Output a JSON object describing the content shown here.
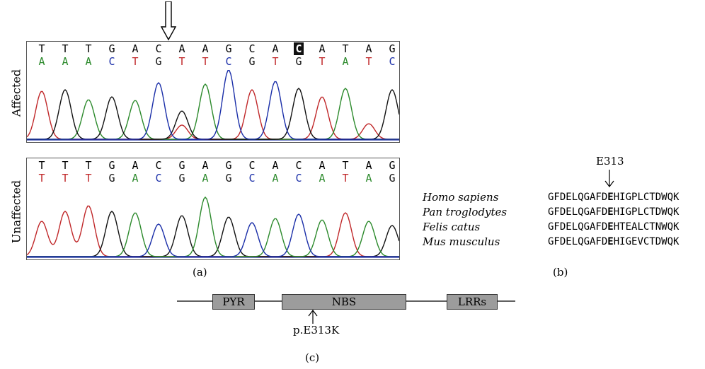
{
  "panel_a": {
    "caption": "(a)",
    "affected": {
      "label": "Affected",
      "seq_top": [
        "T",
        "T",
        "T",
        "G",
        "A",
        "C",
        "A",
        "A",
        "G",
        "C",
        "A",
        "C",
        "A",
        "T",
        "A",
        "G"
      ],
      "highlight_index": 11,
      "seq_bottom": [
        "A",
        "A",
        "A",
        "C",
        "T",
        "G",
        "T",
        "T",
        "C",
        "G",
        "T",
        "G",
        "T",
        "A",
        "T",
        "C"
      ],
      "bottom_colors": [
        "#2c8a2c",
        "#2c8a2c",
        "#2c8a2c",
        "#1a2ea8",
        "#c0282a",
        "#111111",
        "#c0282a",
        "#c0282a",
        "#1a2ea8",
        "#111111",
        "#c0282a",
        "#111111",
        "#c0282a",
        "#2c8a2c",
        "#c0282a",
        "#1a2ea8"
      ]
    },
    "unaffected": {
      "label": "Unaffected",
      "seq_top": [
        "T",
        "T",
        "T",
        "G",
        "A",
        "C",
        "G",
        "A",
        "G",
        "C",
        "A",
        "C",
        "A",
        "T",
        "A",
        "G"
      ],
      "seq_bottom": [
        "T",
        "T",
        "T",
        "G",
        "A",
        "C",
        "G",
        "A",
        "G",
        "C",
        "A",
        "C",
        "A",
        "T",
        "A",
        "G"
      ],
      "bottom_colors": [
        "#c0282a",
        "#c0282a",
        "#c0282a",
        "#111111",
        "#2c8a2c",
        "#1a2ea8",
        "#111111",
        "#2c8a2c",
        "#111111",
        "#1a2ea8",
        "#2c8a2c",
        "#1a2ea8",
        "#2c8a2c",
        "#c0282a",
        "#2c8a2c",
        "#111111"
      ]
    }
  },
  "panel_b": {
    "caption": "(b)",
    "marker_label": "E313",
    "rows": [
      {
        "species": "Homo sapiens",
        "pre": "GFDELQGAFD",
        "mark": "E",
        "post": "HIGPLCTDWQK"
      },
      {
        "species": "Pan troglodytes",
        "pre": "GFDELQGAFD",
        "mark": "E",
        "post": "HIGPLCTDWQK"
      },
      {
        "species": "Felis catus",
        "pre": "GFDELQGAFD",
        "mark": "E",
        "post": "HTEALCTNWQK"
      },
      {
        "species": "Mus musculus",
        "pre": "GFDELQGAFD",
        "mark": "E",
        "post": "HIGEVCTDWQK"
      }
    ]
  },
  "panel_c": {
    "caption": "(c)",
    "domains": [
      {
        "name": "PYR"
      },
      {
        "name": "NBS"
      },
      {
        "name": "LRRs"
      }
    ],
    "mutation_label": "p.E313K"
  }
}
